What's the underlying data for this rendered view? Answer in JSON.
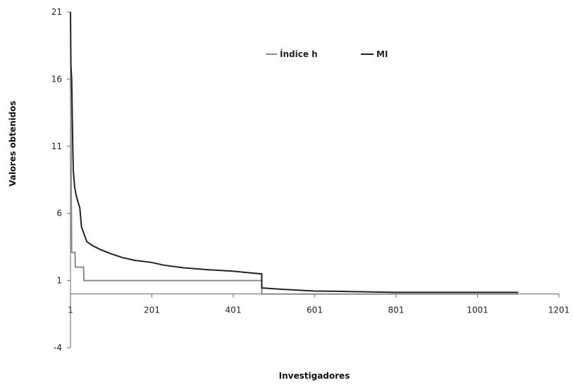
{
  "chart_data": {
    "type": "line",
    "title": "",
    "xlabel": "Investigadores",
    "ylabel": "Valores obtenidos",
    "xlim": [
      1,
      1201
    ],
    "ylim": [
      -4,
      21
    ],
    "x_ticks": [
      "1",
      "201",
      "401",
      "601",
      "801",
      "1001",
      "1201"
    ],
    "y_ticks": [
      "-4",
      "1",
      "6",
      "11",
      "16",
      "21"
    ],
    "grid": false,
    "legend_position": "top-center",
    "series": [
      {
        "name": "Índice h",
        "color": "#8c8c8c",
        "points": [
          [
            1,
            16
          ],
          [
            2,
            13
          ],
          [
            3,
            7
          ],
          [
            4,
            3.1
          ],
          [
            12,
            3.1
          ],
          [
            13,
            2
          ],
          [
            33,
            2
          ],
          [
            34,
            1
          ],
          [
            471,
            1
          ],
          [
            471,
            0
          ],
          [
            1101,
            0
          ]
        ]
      },
      {
        "name": "MI",
        "color": "#222222",
        "points": [
          [
            1,
            21
          ],
          [
            2,
            17
          ],
          [
            4,
            16
          ],
          [
            6,
            12
          ],
          [
            8,
            9.2
          ],
          [
            11,
            8
          ],
          [
            14,
            7.5
          ],
          [
            18,
            7
          ],
          [
            24,
            6.4
          ],
          [
            28,
            5
          ],
          [
            34,
            4.5
          ],
          [
            41,
            3.9
          ],
          [
            55,
            3.6
          ],
          [
            75,
            3.3
          ],
          [
            100,
            3.0
          ],
          [
            130,
            2.7
          ],
          [
            160,
            2.5
          ],
          [
            200,
            2.35
          ],
          [
            230,
            2.15
          ],
          [
            280,
            1.95
          ],
          [
            340,
            1.8
          ],
          [
            400,
            1.7
          ],
          [
            450,
            1.55
          ],
          [
            471,
            1.5
          ],
          [
            471,
            0.45
          ],
          [
            520,
            0.35
          ],
          [
            560,
            0.28
          ],
          [
            600,
            0.22
          ],
          [
            661,
            0.2
          ],
          [
            740,
            0.15
          ],
          [
            800,
            0.12
          ],
          [
            900,
            0.12
          ],
          [
            1101,
            0.12
          ]
        ]
      }
    ]
  }
}
